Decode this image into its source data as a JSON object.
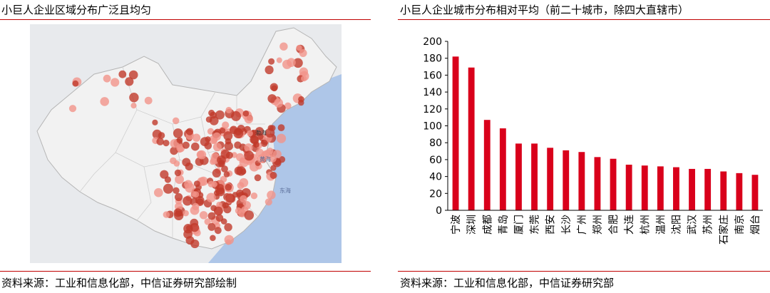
{
  "left_panel": {
    "title": "小巨人企业区域分布广泛且均匀",
    "source": "资料来源：工业和信息化部，中信证券研究部绘制",
    "map_labels": {
      "sea_yellow": "黄海",
      "sea_east": "东海",
      "city_bohai": "渤海"
    }
  },
  "right_panel": {
    "title": "小巨人企业城市分布相对平均（前二十城市，除四大直辖市）",
    "source": "资料来源：工业和信息化部，中信证券研究部"
  },
  "colors": {
    "bar": "#d9001b",
    "rule": "#c00000",
    "land": "#f2f2f2",
    "sea": "#aec6e8",
    "dot_dark": "#c0392b",
    "dot_light": "#f1948a"
  },
  "chart_data": {
    "type": "bar",
    "categories": [
      "宁波",
      "深圳",
      "成都",
      "青岛",
      "厦门",
      "东莞",
      "西安",
      "长沙",
      "广州",
      "郑州",
      "合肥",
      "大连",
      "杭州",
      "温州",
      "沈阳",
      "武汉",
      "苏州",
      "石家庄",
      "南京",
      "烟台"
    ],
    "values": [
      182,
      169,
      107,
      97,
      79,
      79,
      74,
      71,
      69,
      63,
      61,
      54,
      53,
      52,
      51,
      49,
      49,
      46,
      44,
      42
    ],
    "ylim": [
      0,
      200
    ],
    "yticks": [
      0,
      20,
      40,
      60,
      80,
      100,
      120,
      140,
      160,
      180,
      200
    ],
    "title": "",
    "xlabel": "",
    "ylabel": "",
    "grid": false,
    "legend": "none"
  }
}
